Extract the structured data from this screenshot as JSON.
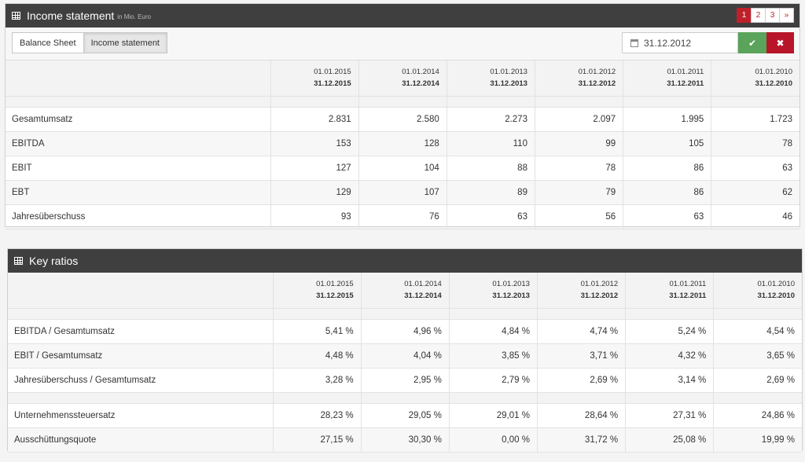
{
  "income": {
    "title": "Income statement",
    "subtitle": "in Mio. Euro",
    "pager": [
      "1",
      "2",
      "3",
      "»"
    ],
    "tabs": [
      "Balance Sheet",
      "Income statement"
    ],
    "date_value": "31.12.2012",
    "ok_icon": "✔",
    "cancel_icon": "✖",
    "columns": [
      {
        "from": "01.01.2015",
        "to": "31.12.2015"
      },
      {
        "from": "01.01.2014",
        "to": "31.12.2014"
      },
      {
        "from": "01.01.2013",
        "to": "31.12.2013"
      },
      {
        "from": "01.01.2012",
        "to": "31.12.2012"
      },
      {
        "from": "01.01.2011",
        "to": "31.12.2011"
      },
      {
        "from": "01.01.2010",
        "to": "31.12.2010"
      }
    ],
    "rows": [
      {
        "label": "Gesamtumsatz",
        "values": [
          "2.831",
          "2.580",
          "2.273",
          "2.097",
          "1.995",
          "1.723"
        ]
      },
      {
        "label": "EBITDA",
        "values": [
          "153",
          "128",
          "110",
          "99",
          "105",
          "78"
        ]
      },
      {
        "label": "EBIT",
        "values": [
          "127",
          "104",
          "88",
          "78",
          "86",
          "63"
        ]
      },
      {
        "label": "EBT",
        "values": [
          "129",
          "107",
          "89",
          "79",
          "86",
          "62"
        ]
      },
      {
        "label": "Jahresüberschuss",
        "values": [
          "93",
          "76",
          "63",
          "56",
          "63",
          "46"
        ]
      }
    ]
  },
  "ratios": {
    "title": "Key ratios",
    "columns": [
      {
        "from": "01.01.2015",
        "to": "31.12.2015"
      },
      {
        "from": "01.01.2014",
        "to": "31.12.2014"
      },
      {
        "from": "01.01.2013",
        "to": "31.12.2013"
      },
      {
        "from": "01.01.2012",
        "to": "31.12.2012"
      },
      {
        "from": "01.01.2011",
        "to": "31.12.2011"
      },
      {
        "from": "01.01.2010",
        "to": "31.12.2010"
      }
    ],
    "rows_a": [
      {
        "label": "EBITDA / Gesamtumsatz",
        "values": [
          "5,41 %",
          "4,96 %",
          "4,84 %",
          "4,74 %",
          "5,24 %",
          "4,54 %"
        ]
      },
      {
        "label": "EBIT / Gesamtumsatz",
        "values": [
          "4,48 %",
          "4,04 %",
          "3,85 %",
          "3,71 %",
          "4,32 %",
          "3,65 %"
        ]
      },
      {
        "label": "Jahresüberschuss / Gesamtumsatz",
        "values": [
          "3,28 %",
          "2,95 %",
          "2,79 %",
          "2,69 %",
          "3,14 %",
          "2,69 %"
        ]
      }
    ],
    "rows_b": [
      {
        "label": "Unternehmenssteuersatz",
        "values": [
          "28,23 %",
          "29,05 %",
          "29,01 %",
          "28,64 %",
          "27,31 %",
          "24,86 %"
        ]
      },
      {
        "label": "Ausschüttungsquote",
        "values": [
          "27,15 %",
          "30,30 %",
          "0,00 %",
          "31,72 %",
          "25,08 %",
          "19,99 %"
        ]
      }
    ]
  }
}
